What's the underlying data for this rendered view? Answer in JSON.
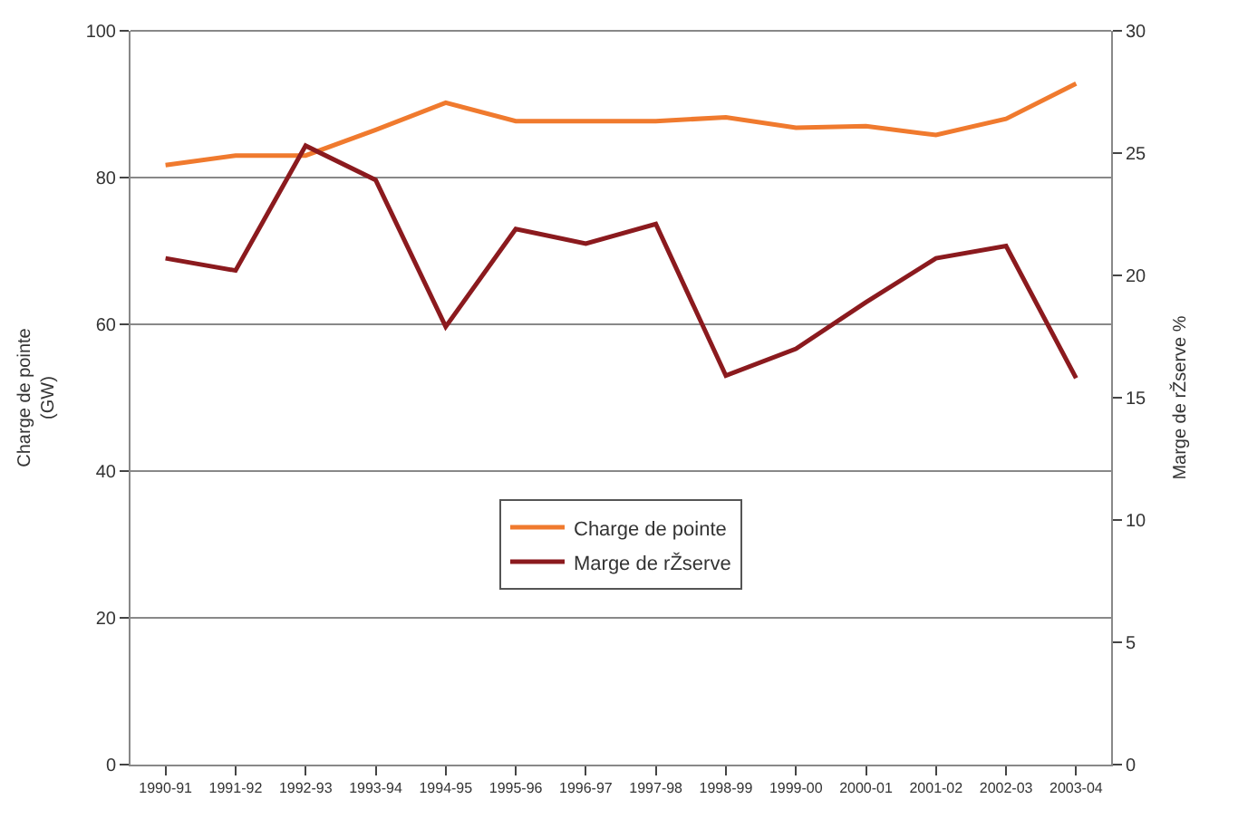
{
  "chart_data": {
    "type": "line",
    "categories": [
      "1990-91",
      "1991-92",
      "1992-93",
      "1993-94",
      "1994-95",
      "1995-96",
      "1996-97",
      "1997-98",
      "1998-99",
      "1999-00",
      "2000-01",
      "2001-02",
      "2002-03",
      "2003-04"
    ],
    "series": [
      {
        "name": "Charge de pointe",
        "color": "#f07a2e",
        "values": [
          81.7,
          83,
          83,
          86.5,
          90.2,
          87.7,
          87.7,
          87.7,
          88.2,
          86.8,
          87,
          85.8,
          88,
          92.8
        ]
      },
      {
        "name": "Marge de rŽserve",
        "color": "#8b1a1e",
        "axis": "y2",
        "values": [
          20.7,
          20.2,
          25.3,
          23.9,
          17.9,
          21.9,
          21.3,
          22.1,
          15.9,
          17.0,
          18.9,
          20.7,
          21.2,
          15.8
        ]
      }
    ],
    "ylabel": "Charge de pointe\n(GW)",
    "y2label": "Marge de rŽserve %",
    "ylim": [
      0,
      100
    ],
    "yticks": [
      0,
      20,
      40,
      60,
      80,
      100
    ],
    "y2lim": [
      0,
      30
    ],
    "y2ticks": [
      0,
      5,
      10,
      15,
      20,
      25,
      30
    ],
    "grid": "y",
    "legend": "center",
    "marker": "none",
    "line_style": "solid"
  }
}
